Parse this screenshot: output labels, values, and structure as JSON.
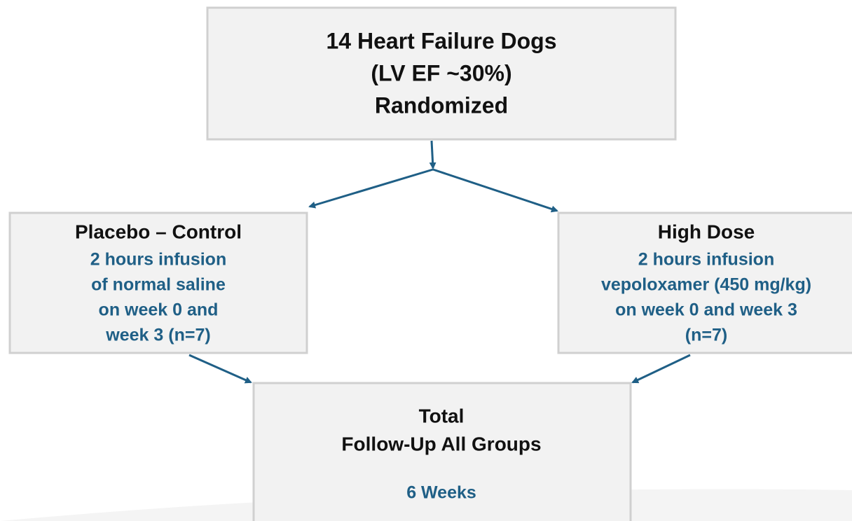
{
  "nodes": [
    {
      "lines": [
        "14 Heart Failure Dogs",
        "(LV EF ~30%)",
        "Randomized"
      ]
    },
    {
      "title": "Placebo – Control",
      "lines": [
        "2 hours infusion",
        "of normal saline",
        "on week 0 and",
        "week 3 (n=7)"
      ]
    },
    {
      "title": "High Dose",
      "lines": [
        "2 hours infusion",
        "vepoloxamer (450 mg/kg)",
        "on week 0 and week 3",
        "(n=7)"
      ]
    },
    {
      "lines": [
        "Total",
        "Follow-Up All Groups"
      ],
      "note": "6 Weeks"
    }
  ]
}
